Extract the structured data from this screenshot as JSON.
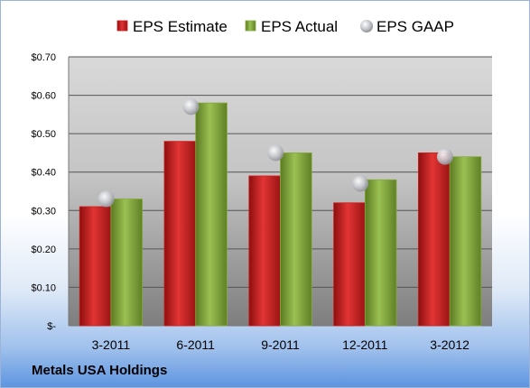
{
  "company_label": "Metals USA Holdings",
  "colors": {
    "estimate": "#cc1f1f",
    "actual": "#86aa3c",
    "gaap": "#b5b7bd"
  },
  "chart_data": {
    "type": "bar",
    "title": "",
    "xlabel": "",
    "ylabel": "",
    "categories": [
      "3-2011",
      "6-2011",
      "9-2011",
      "12-2011",
      "3-2012"
    ],
    "ylim": [
      0,
      0.7
    ],
    "yticks": [
      0,
      0.1,
      0.2,
      0.3,
      0.4,
      0.5,
      0.6,
      0.7
    ],
    "ytick_labels": [
      "$-",
      "$0.10",
      "$0.20",
      "$0.30",
      "$0.40",
      "$0.50",
      "$0.60",
      "$0.70"
    ],
    "grid": true,
    "legend_position": "top",
    "series": [
      {
        "name": "EPS Estimate",
        "kind": "bar",
        "values": [
          0.31,
          0.48,
          0.39,
          0.32,
          0.45
        ]
      },
      {
        "name": "EPS Actual",
        "kind": "bar",
        "values": [
          0.33,
          0.58,
          0.45,
          0.38,
          0.44
        ]
      },
      {
        "name": "EPS GAAP",
        "kind": "marker",
        "values": [
          0.33,
          0.57,
          0.45,
          0.37,
          0.44
        ]
      }
    ]
  }
}
